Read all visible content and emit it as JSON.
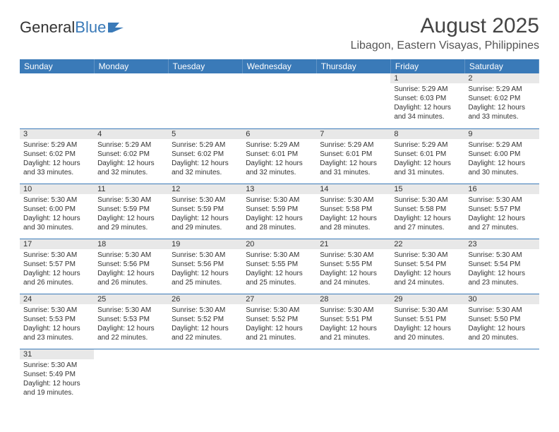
{
  "logo": {
    "text1": "General",
    "text2": "Blue"
  },
  "title": "August 2025",
  "subtitle": "Libagon, Eastern Visayas, Philippines",
  "colors": {
    "header_bg": "#3a7ab8",
    "header_text": "#ffffff",
    "daynum_bg": "#e8e8e8",
    "border": "#3a7ab8",
    "page_bg": "#ffffff",
    "text": "#333333"
  },
  "fontsize": {
    "title": 30,
    "subtitle": 16,
    "dayheader": 12,
    "daynum": 11,
    "daydata": 10
  },
  "days_of_week": [
    "Sunday",
    "Monday",
    "Tuesday",
    "Wednesday",
    "Thursday",
    "Friday",
    "Saturday"
  ],
  "weeks": [
    [
      null,
      null,
      null,
      null,
      null,
      {
        "num": "1",
        "sunrise": "5:29 AM",
        "sunset": "6:03 PM",
        "daylight": "12 hours and 34 minutes."
      },
      {
        "num": "2",
        "sunrise": "5:29 AM",
        "sunset": "6:02 PM",
        "daylight": "12 hours and 33 minutes."
      }
    ],
    [
      {
        "num": "3",
        "sunrise": "5:29 AM",
        "sunset": "6:02 PM",
        "daylight": "12 hours and 33 minutes."
      },
      {
        "num": "4",
        "sunrise": "5:29 AM",
        "sunset": "6:02 PM",
        "daylight": "12 hours and 32 minutes."
      },
      {
        "num": "5",
        "sunrise": "5:29 AM",
        "sunset": "6:02 PM",
        "daylight": "12 hours and 32 minutes."
      },
      {
        "num": "6",
        "sunrise": "5:29 AM",
        "sunset": "6:01 PM",
        "daylight": "12 hours and 32 minutes."
      },
      {
        "num": "7",
        "sunrise": "5:29 AM",
        "sunset": "6:01 PM",
        "daylight": "12 hours and 31 minutes."
      },
      {
        "num": "8",
        "sunrise": "5:29 AM",
        "sunset": "6:01 PM",
        "daylight": "12 hours and 31 minutes."
      },
      {
        "num": "9",
        "sunrise": "5:29 AM",
        "sunset": "6:00 PM",
        "daylight": "12 hours and 30 minutes."
      }
    ],
    [
      {
        "num": "10",
        "sunrise": "5:30 AM",
        "sunset": "6:00 PM",
        "daylight": "12 hours and 30 minutes."
      },
      {
        "num": "11",
        "sunrise": "5:30 AM",
        "sunset": "5:59 PM",
        "daylight": "12 hours and 29 minutes."
      },
      {
        "num": "12",
        "sunrise": "5:30 AM",
        "sunset": "5:59 PM",
        "daylight": "12 hours and 29 minutes."
      },
      {
        "num": "13",
        "sunrise": "5:30 AM",
        "sunset": "5:59 PM",
        "daylight": "12 hours and 28 minutes."
      },
      {
        "num": "14",
        "sunrise": "5:30 AM",
        "sunset": "5:58 PM",
        "daylight": "12 hours and 28 minutes."
      },
      {
        "num": "15",
        "sunrise": "5:30 AM",
        "sunset": "5:58 PM",
        "daylight": "12 hours and 27 minutes."
      },
      {
        "num": "16",
        "sunrise": "5:30 AM",
        "sunset": "5:57 PM",
        "daylight": "12 hours and 27 minutes."
      }
    ],
    [
      {
        "num": "17",
        "sunrise": "5:30 AM",
        "sunset": "5:57 PM",
        "daylight": "12 hours and 26 minutes."
      },
      {
        "num": "18",
        "sunrise": "5:30 AM",
        "sunset": "5:56 PM",
        "daylight": "12 hours and 26 minutes."
      },
      {
        "num": "19",
        "sunrise": "5:30 AM",
        "sunset": "5:56 PM",
        "daylight": "12 hours and 25 minutes."
      },
      {
        "num": "20",
        "sunrise": "5:30 AM",
        "sunset": "5:55 PM",
        "daylight": "12 hours and 25 minutes."
      },
      {
        "num": "21",
        "sunrise": "5:30 AM",
        "sunset": "5:55 PM",
        "daylight": "12 hours and 24 minutes."
      },
      {
        "num": "22",
        "sunrise": "5:30 AM",
        "sunset": "5:54 PM",
        "daylight": "12 hours and 24 minutes."
      },
      {
        "num": "23",
        "sunrise": "5:30 AM",
        "sunset": "5:54 PM",
        "daylight": "12 hours and 23 minutes."
      }
    ],
    [
      {
        "num": "24",
        "sunrise": "5:30 AM",
        "sunset": "5:53 PM",
        "daylight": "12 hours and 23 minutes."
      },
      {
        "num": "25",
        "sunrise": "5:30 AM",
        "sunset": "5:53 PM",
        "daylight": "12 hours and 22 minutes."
      },
      {
        "num": "26",
        "sunrise": "5:30 AM",
        "sunset": "5:52 PM",
        "daylight": "12 hours and 22 minutes."
      },
      {
        "num": "27",
        "sunrise": "5:30 AM",
        "sunset": "5:52 PM",
        "daylight": "12 hours and 21 minutes."
      },
      {
        "num": "28",
        "sunrise": "5:30 AM",
        "sunset": "5:51 PM",
        "daylight": "12 hours and 21 minutes."
      },
      {
        "num": "29",
        "sunrise": "5:30 AM",
        "sunset": "5:51 PM",
        "daylight": "12 hours and 20 minutes."
      },
      {
        "num": "30",
        "sunrise": "5:30 AM",
        "sunset": "5:50 PM",
        "daylight": "12 hours and 20 minutes."
      }
    ],
    [
      {
        "num": "31",
        "sunrise": "5:30 AM",
        "sunset": "5:49 PM",
        "daylight": "12 hours and 19 minutes."
      },
      null,
      null,
      null,
      null,
      null,
      null
    ]
  ],
  "labels": {
    "sunrise": "Sunrise:",
    "sunset": "Sunset:",
    "daylight": "Daylight:"
  }
}
